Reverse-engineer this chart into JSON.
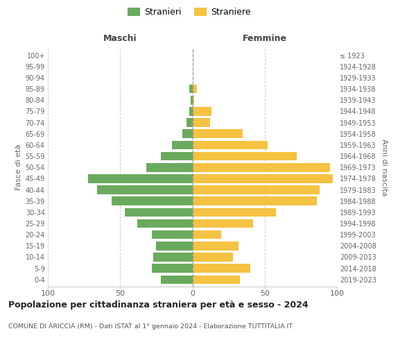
{
  "age_groups": [
    "0-4",
    "5-9",
    "10-14",
    "15-19",
    "20-24",
    "25-29",
    "30-34",
    "35-39",
    "40-44",
    "45-49",
    "50-54",
    "55-59",
    "60-64",
    "65-69",
    "70-74",
    "75-79",
    "80-84",
    "85-89",
    "90-94",
    "95-99",
    "100+"
  ],
  "birth_years": [
    "2019-2023",
    "2014-2018",
    "2009-2013",
    "2004-2008",
    "1999-2003",
    "1994-1998",
    "1989-1993",
    "1984-1988",
    "1979-1983",
    "1974-1978",
    "1969-1973",
    "1964-1968",
    "1959-1963",
    "1954-1958",
    "1949-1953",
    "1944-1948",
    "1939-1943",
    "1934-1938",
    "1929-1933",
    "1924-1928",
    "≤ 1923"
  ],
  "maschi": [
    22,
    28,
    27,
    25,
    28,
    38,
    47,
    56,
    66,
    72,
    32,
    22,
    14,
    7,
    4,
    2,
    1,
    2,
    0,
    0,
    0
  ],
  "femmine": [
    33,
    40,
    28,
    32,
    20,
    42,
    58,
    86,
    88,
    97,
    95,
    72,
    52,
    35,
    12,
    13,
    1,
    3,
    0,
    0,
    0
  ],
  "color_maschi": "#6aaa5e",
  "color_femmine": "#f5c242",
  "title": "Popolazione per cittadinanza straniera per età e sesso - 2024",
  "subtitle": "COMUNE DI ARICCIA (RM) - Dati ISTAT al 1° gennaio 2024 - Elaborazione TUTTITALIA.IT",
  "label_maschi": "Stranieri",
  "label_femmine": "Straniere",
  "header_left": "Maschi",
  "header_right": "Femmine",
  "ylabel_left": "Fasce di età",
  "ylabel_right": "Anni di nascita",
  "xlim": 100,
  "background_color": "#ffffff"
}
